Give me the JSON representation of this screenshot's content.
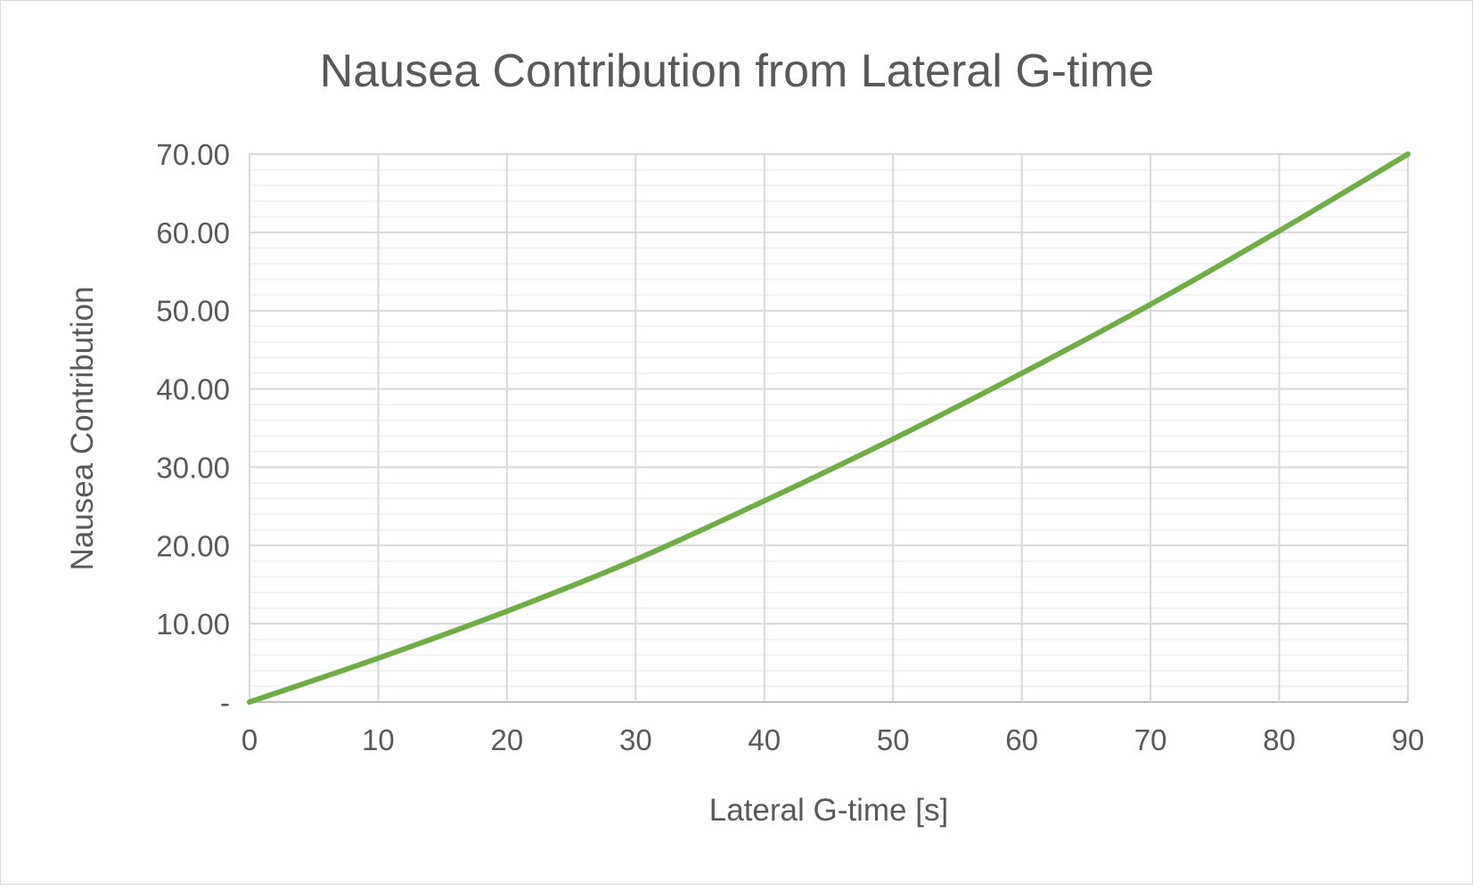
{
  "chart_data": {
    "type": "line",
    "title": "Nausea Contribution from Lateral G-time",
    "xlabel": "Lateral G-time [s]",
    "ylabel": "Nausea Contribution",
    "xlim": [
      0,
      90
    ],
    "ylim": [
      0,
      70
    ],
    "x_ticks": [
      "0",
      "10",
      "20",
      "30",
      "40",
      "50",
      "60",
      "70",
      "80",
      "90"
    ],
    "y_ticks": [
      "-",
      "10.00",
      "20.00",
      "30.00",
      "40.00",
      "50.00",
      "60.00",
      "70.00"
    ],
    "grid": true,
    "minor_grid": true,
    "legend": "none",
    "series": [
      {
        "name": "Nausea Contribution",
        "color": "#70ad47",
        "x": [
          0,
          10,
          20,
          30,
          40,
          50,
          60,
          70,
          80,
          90
        ],
        "y": [
          0,
          5.6,
          11.6,
          18.2,
          25.7,
          33.6,
          42.0,
          50.8,
          60.2,
          70.0
        ]
      }
    ]
  }
}
